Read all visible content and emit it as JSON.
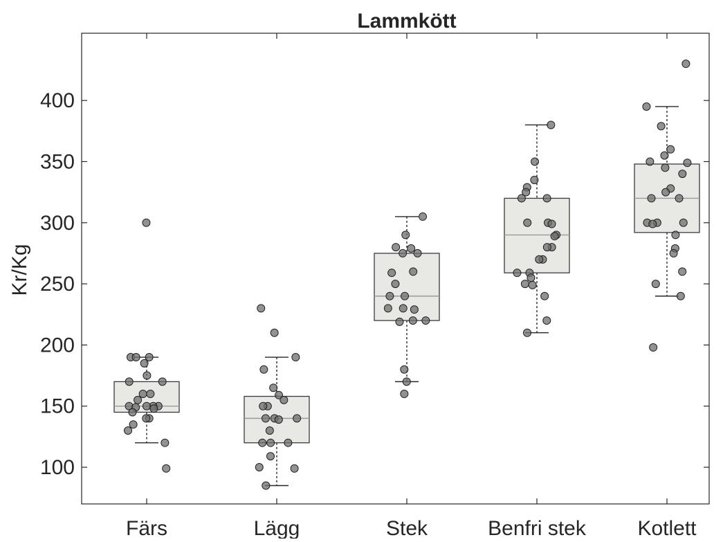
{
  "chart_data": {
    "type": "boxplot",
    "title": "Lammkött",
    "xlabel": "",
    "ylabel": "Kr/Kg",
    "ylim": [
      70,
      455
    ],
    "yticks": [
      100,
      150,
      200,
      250,
      300,
      350,
      400
    ],
    "grid": false,
    "categories": [
      "Färs",
      "Lägg",
      "Stek",
      "Benfri stek",
      "Kotlett"
    ],
    "colors": {
      "box_fill": "#e8e8e4",
      "box_stroke": "#3a3a3a",
      "median": "#9a9a9a",
      "point_fill": "#6e6e6e",
      "point_stroke": "#202020"
    },
    "boxes": [
      {
        "category": "Färs",
        "whisker_low": 120,
        "q1": 145,
        "median": 150,
        "q3": 170,
        "whisker_high": 190
      },
      {
        "category": "Lägg",
        "whisker_low": 85,
        "q1": 120,
        "median": 140,
        "q3": 158,
        "whisker_high": 190
      },
      {
        "category": "Stek",
        "whisker_low": 170,
        "q1": 220,
        "median": 240,
        "q3": 275,
        "whisker_high": 305
      },
      {
        "category": "Benfri stek",
        "whisker_low": 210,
        "q1": 259,
        "median": 290,
        "q3": 320,
        "whisker_high": 380
      },
      {
        "category": "Kotlett",
        "whisker_low": 240,
        "q1": 292,
        "median": 320,
        "q3": 348,
        "whisker_high": 395
      }
    ],
    "points": [
      [
        300,
        190,
        190,
        190,
        185,
        175,
        170,
        170,
        160,
        160,
        155,
        150,
        150,
        150,
        150,
        149,
        148,
        145,
        140,
        140,
        135,
        130,
        120,
        99
      ],
      [
        230,
        210,
        190,
        180,
        165,
        159,
        155,
        150,
        150,
        140,
        140,
        140,
        139,
        130,
        120,
        120,
        120,
        109,
        100,
        99,
        85
      ],
      [
        305,
        290,
        280,
        279,
        275,
        275,
        260,
        259,
        250,
        240,
        240,
        230,
        230,
        229,
        220,
        220,
        219,
        180,
        170,
        160
      ],
      [
        380,
        350,
        335,
        329,
        325,
        320,
        320,
        300,
        300,
        299,
        290,
        289,
        280,
        280,
        270,
        270,
        259,
        259,
        255,
        250,
        249,
        240,
        220,
        210
      ],
      [
        430,
        395,
        379,
        360,
        355,
        350,
        349,
        345,
        340,
        328,
        325,
        320,
        320,
        300,
        300,
        300,
        299,
        290,
        279,
        275,
        260,
        250,
        240,
        198
      ]
    ]
  }
}
